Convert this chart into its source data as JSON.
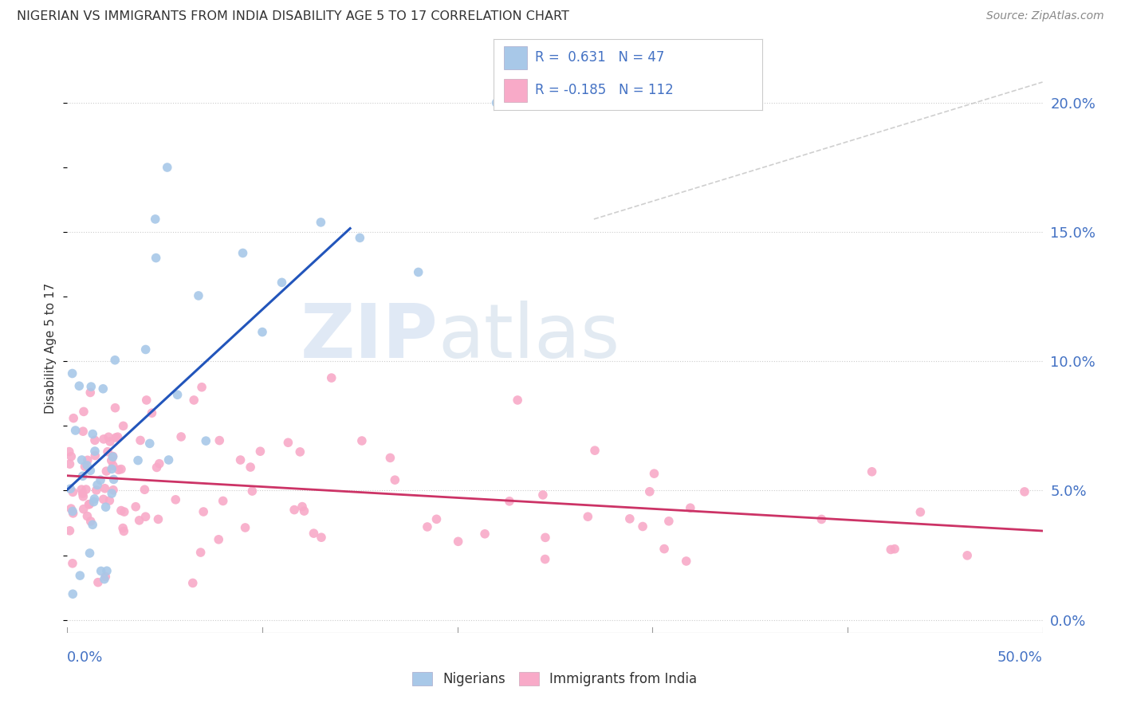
{
  "title": "NIGERIAN VS IMMIGRANTS FROM INDIA DISABILITY AGE 5 TO 17 CORRELATION CHART",
  "source": "Source: ZipAtlas.com",
  "ylabel": "Disability Age 5 to 17",
  "right_ytick_vals": [
    0.0,
    0.05,
    0.1,
    0.15,
    0.2
  ],
  "xlim": [
    0.0,
    0.5
  ],
  "ylim": [
    -0.005,
    0.215
  ],
  "nigerian_color": "#a8c8e8",
  "indian_color": "#f8aac8",
  "nigerian_line_color": "#2255bb",
  "indian_line_color": "#cc3366",
  "diag_color": "#bbbbbb",
  "nigerian_R": 0.631,
  "nigerian_N": 47,
  "indian_R": -0.185,
  "indian_N": 112,
  "background_color": "#ffffff",
  "grid_color": "#cccccc",
  "title_color": "#333333",
  "source_color": "#888888",
  "axis_label_color": "#4472c4",
  "watermark1": "ZIP",
  "watermark2": "atlas",
  "legend_R1": "R =  0.631",
  "legend_N1": "N = 47",
  "legend_R2": "R = -0.185",
  "legend_N2": "N = 112",
  "bottom_label1": "Nigerians",
  "bottom_label2": "Immigrants from India"
}
